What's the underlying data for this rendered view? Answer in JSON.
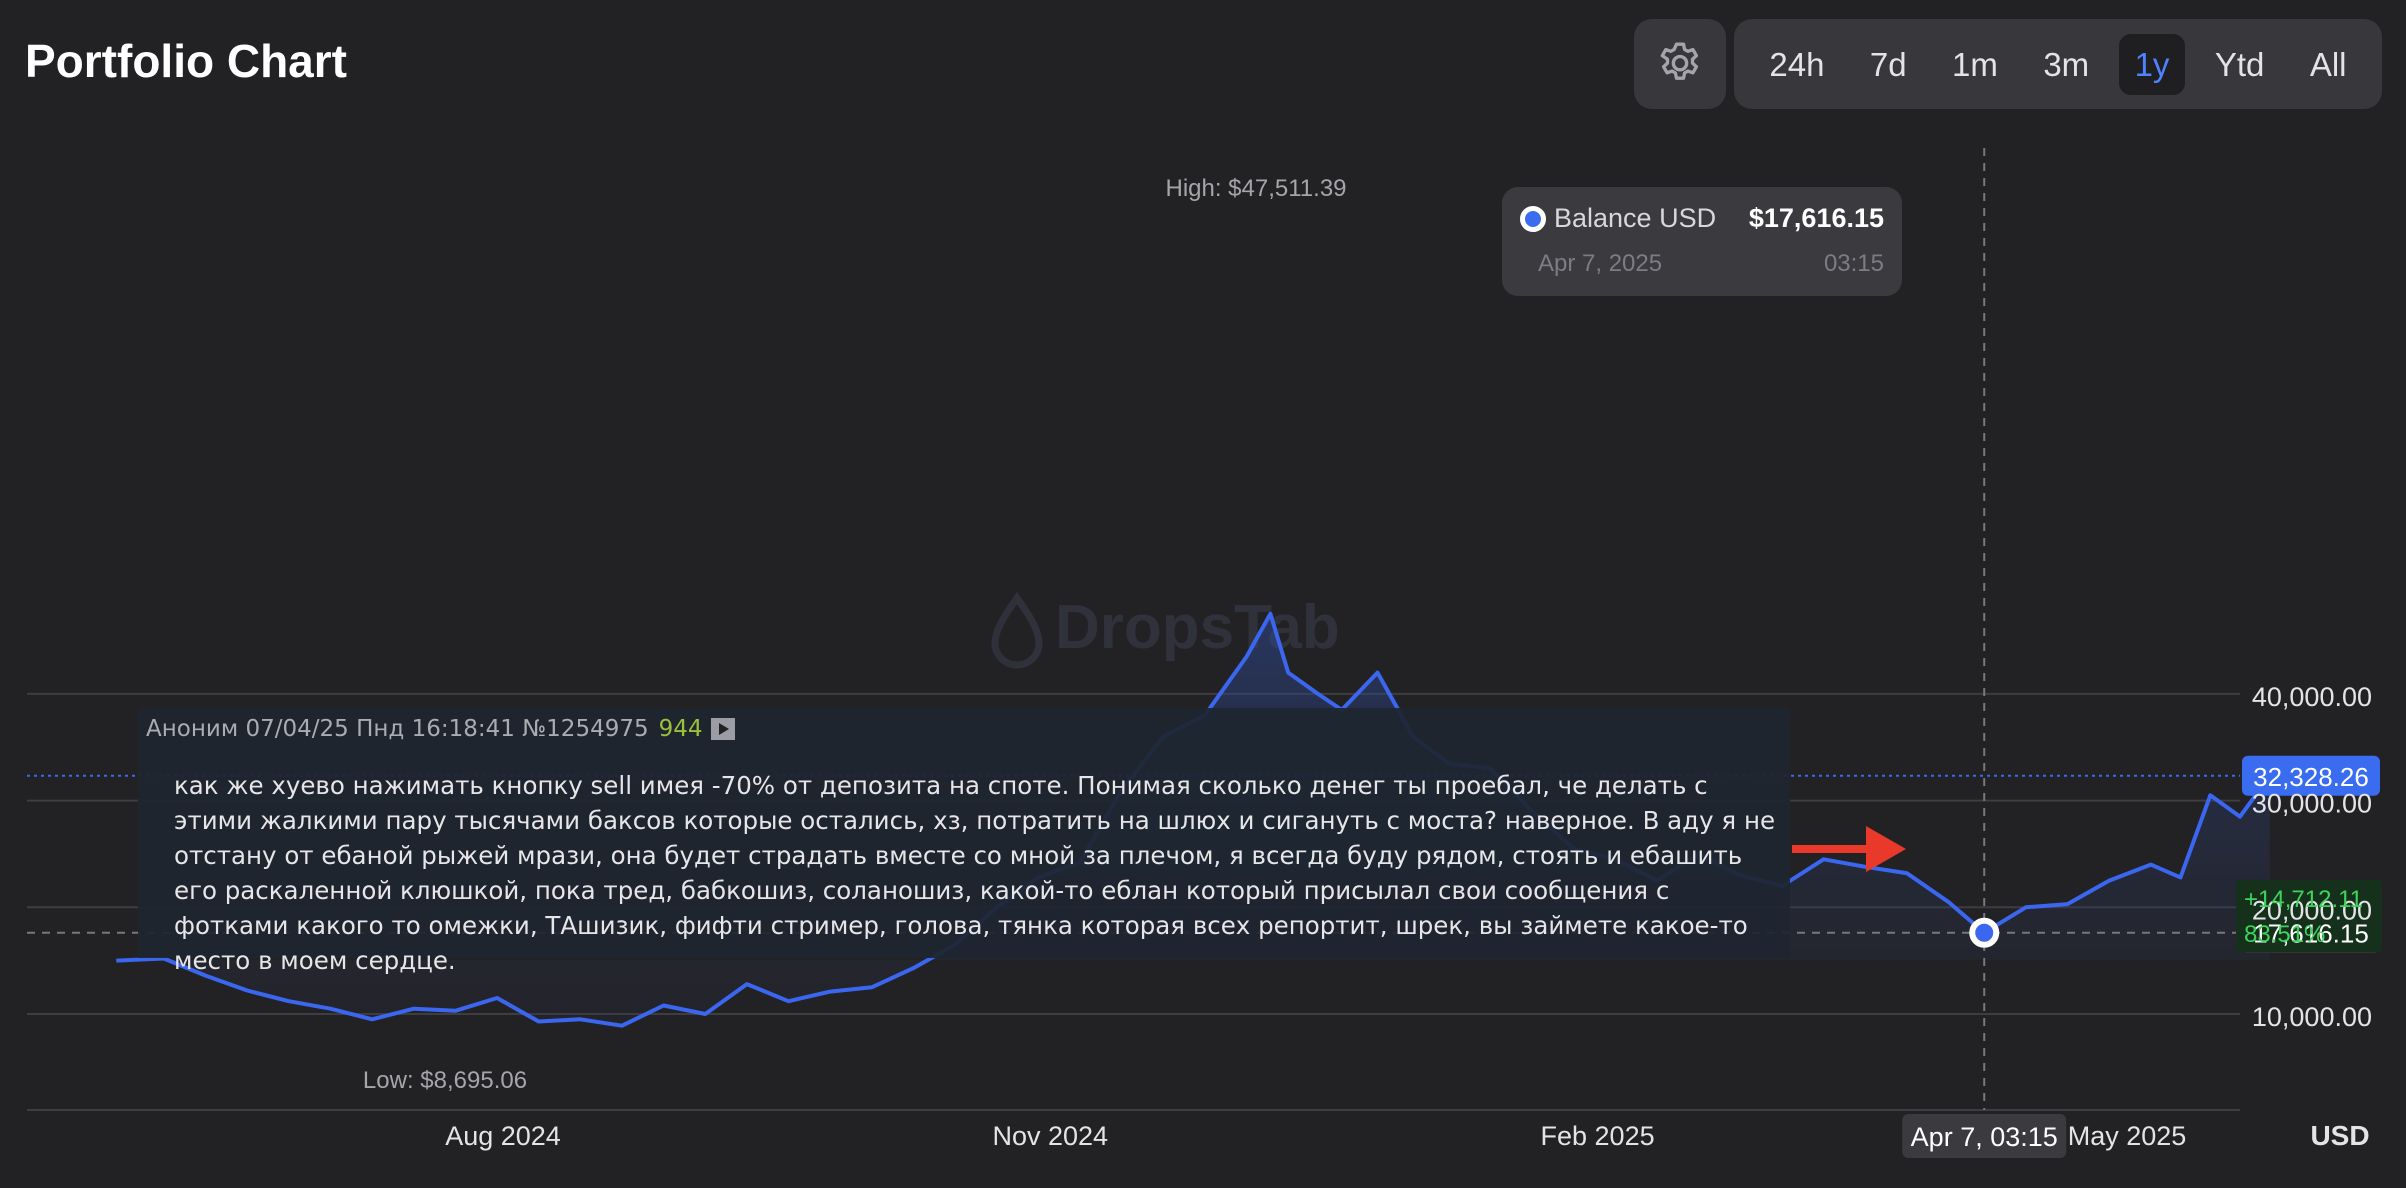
{
  "header": {
    "title": "Portfolio Chart",
    "settings_icon": "gear-icon",
    "ranges": [
      "24h",
      "7d",
      "1m",
      "3m",
      "1y",
      "Ytd",
      "All"
    ],
    "active_range": "1y"
  },
  "tooltip": {
    "label": "Balance USD",
    "value": "$17,616.15",
    "date": "Apr 7, 2025",
    "time": "03:15"
  },
  "post": {
    "header": "Аноним 07/04/25 Пнд 16:18:41 №1254975",
    "count": "944",
    "text": "как же хуево нажимать кнопку sell имея -70% от депозита на споте. Понимая сколько денег ты проебал, че делать с этими жалкими пару тысячами баксов которые остались, хз, потратить на шлюх и сигануть с моста? наверное. В аду я не отстану от ебаной рыжей мрази, она будет страдать вместе со мной за плечом, я всегда буду рядом, стоять и ебашить его раскаленной клюшкой, пока тред, бабкошиз, соланошиз, какой-то еблан который присылал свои сообщения с фотками какого то омежки, ТАшизик, фифти стример, голова, тянка которая всех репортит, шрек, вы займете какое-то место в моем сердце."
  },
  "watermark": "DropsTab",
  "colors": {
    "line": "#3b67f0",
    "accent": "#4d83ff",
    "positive": "#3ed35a",
    "arrow": "#e8392b"
  },
  "chart_data": {
    "type": "area",
    "y_unit": "USD",
    "ylim": [
      5000,
      47511.39
    ],
    "yticks": [
      10000,
      20000,
      30000,
      40000
    ],
    "ytick_labels": [
      "10,000.00",
      "20,000.00",
      "30,000.00",
      "40,000.00"
    ],
    "xticks": [
      "2024-08-01",
      "2024-11-01",
      "2025-02-01",
      "2025-05-01"
    ],
    "xtick_labels": [
      "Aug 2024",
      "Nov 2024",
      "Feb 2025",
      "May 2025"
    ],
    "high_label": "High: $47,511.39",
    "low_label": "Low: $8,695.06",
    "current_value": 32328.26,
    "current_label": "32,328.26",
    "crosshair_value": 17616.15,
    "crosshair_label": "17,616.15",
    "crosshair_x": "2025-04-07",
    "crosshair_x_label": "Apr 7, 03:15",
    "change_abs": "+14,712.11",
    "change_pct": "83.51%",
    "unit_label": "USD",
    "x": [
      "2024-05-28",
      "2024-06-05",
      "2024-06-12",
      "2024-06-19",
      "2024-06-26",
      "2024-07-03",
      "2024-07-10",
      "2024-07-17",
      "2024-07-24",
      "2024-07-31",
      "2024-08-07",
      "2024-08-14",
      "2024-08-21",
      "2024-08-28",
      "2024-09-04",
      "2024-09-11",
      "2024-09-18",
      "2024-09-25",
      "2024-10-02",
      "2024-10-09",
      "2024-10-16",
      "2024-10-23",
      "2024-10-30",
      "2024-11-06",
      "2024-11-13",
      "2024-11-20",
      "2024-11-27",
      "2024-12-04",
      "2024-12-08",
      "2024-12-11",
      "2024-12-16",
      "2024-12-20",
      "2024-12-26",
      "2025-01-01",
      "2025-01-07",
      "2025-01-14",
      "2025-01-21",
      "2025-01-28",
      "2025-02-04",
      "2025-02-11",
      "2025-02-18",
      "2025-02-25",
      "2025-03-04",
      "2025-03-11",
      "2025-03-18",
      "2025-03-25",
      "2025-04-01",
      "2025-04-07",
      "2025-04-14",
      "2025-04-21",
      "2025-04-28",
      "2025-05-05",
      "2025-05-10",
      "2025-05-15",
      "2025-05-20",
      "2025-05-25"
    ],
    "values": [
      15000,
      15200,
      13600,
      12200,
      11200,
      10500,
      9500,
      10500,
      10300,
      11500,
      9300,
      9500,
      8900,
      10800,
      10000,
      12800,
      11200,
      12100,
      12500,
      14300,
      16500,
      20000,
      22800,
      24200,
      31000,
      36000,
      38000,
      43500,
      47511,
      42000,
      40000,
      38500,
      42000,
      36000,
      33500,
      33000,
      29000,
      25500,
      24500,
      22500,
      25000,
      23000,
      22000,
      24500,
      23800,
      23200,
      20500,
      17616,
      20000,
      20300,
      22500,
      24000,
      22800,
      30500,
      28500,
      32328
    ]
  }
}
